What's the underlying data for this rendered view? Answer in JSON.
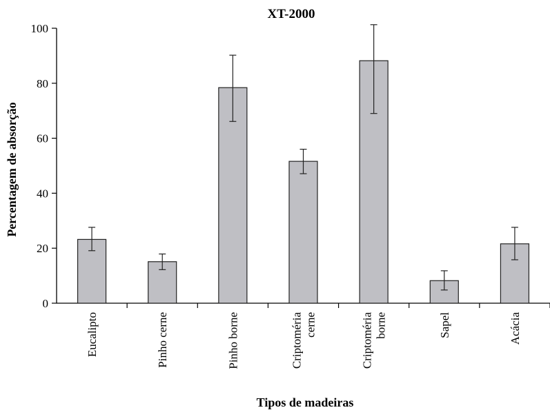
{
  "chart_data": {
    "type": "bar",
    "title": "XT-2000",
    "xlabel": "Tipos de madeiras",
    "ylabel": "Percentagem de absorção",
    "ylim": [
      0,
      100
    ],
    "yticks": [
      "0",
      "20",
      "40",
      "60",
      "80",
      "100"
    ],
    "grid": false,
    "legend": "none",
    "colors": {
      "bar_fill": "#bfbfc4",
      "bar_stroke": "#222222",
      "axis": "#000000"
    },
    "categories": [
      [
        "Eucalipto"
      ],
      [
        "Pinho cerne"
      ],
      [
        "Pinho borne"
      ],
      [
        "Criptoméria",
        "cerne"
      ],
      [
        "Criptoméria",
        "borne"
      ],
      [
        "Sapel"
      ],
      [
        "Acácia"
      ]
    ],
    "values": [
      23.2,
      15.1,
      78.4,
      51.6,
      88.2,
      8.2,
      21.6
    ],
    "error_low": [
      19.1,
      12.2,
      66.1,
      47.1,
      69.0,
      4.8,
      15.8
    ],
    "error_high": [
      27.6,
      17.9,
      90.2,
      56.0,
      101.3,
      11.8,
      27.6
    ]
  }
}
